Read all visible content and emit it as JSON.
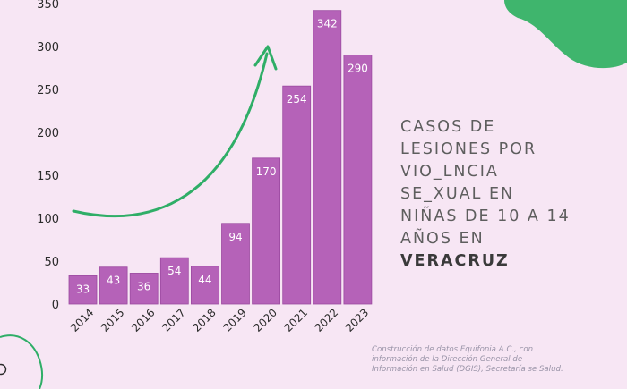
{
  "title": {
    "lines": [
      "CASOS DE",
      "LESIONES POR",
      "VIO_LNCIA",
      "SE_XUAL EN",
      "NIÑAS DE 10 A 14",
      "AÑOS EN"
    ],
    "emphasis": "VERACRUZ"
  },
  "source": {
    "lines": [
      "Construcción de datos Equifonia A.C., con",
      "información de la Dirección General de",
      "Información en Salud (DGIS), Secretaría se Salud."
    ]
  },
  "colors": {
    "background": "#f7e6f4",
    "bar": "#b562b8",
    "bar_edge": "#9c4aa0",
    "arrow": "#2fae67",
    "blob": "#3fb56d",
    "axis_text": "#2b2b2b"
  },
  "chart_data": {
    "type": "bar",
    "categories": [
      "2014",
      "2015",
      "2016",
      "2017",
      "2018",
      "2019",
      "2020",
      "2021",
      "2022",
      "2023"
    ],
    "values": [
      33,
      43,
      36,
      54,
      44,
      94,
      170,
      254,
      342,
      290
    ],
    "yticks": [
      0,
      50,
      100,
      150,
      200,
      250,
      300,
      350
    ],
    "ylim": [
      0,
      350
    ],
    "data_labels": true,
    "grid": false,
    "legend": "none",
    "annotation": "green curved arrow rising from 2014 to 2020"
  }
}
